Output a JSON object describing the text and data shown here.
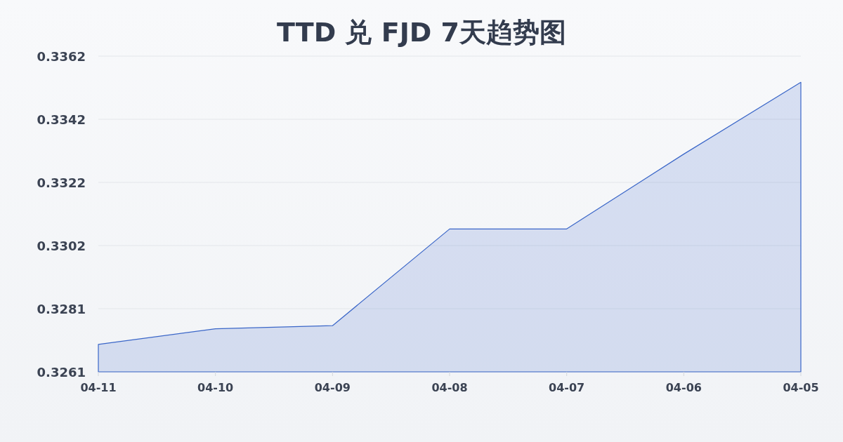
{
  "chart_data": {
    "type": "area",
    "title": "TTD 兑 FJD 7天趋势图",
    "categories": [
      "04-11",
      "04-10",
      "04-09",
      "04-08",
      "04-07",
      "04-06",
      "04-05"
    ],
    "series": [
      {
        "color": "#3a66c8",
        "values": [
          0.327,
          0.3275,
          0.3276,
          0.3307,
          0.3307,
          0.3331,
          0.3354
        ]
      }
    ],
    "ylim": [
      0.32612,
      0.33624
    ],
    "yticks": [
      {
        "value": 0.32612,
        "label": "0.3261"
      },
      {
        "value": 0.328144,
        "label": "0.3281"
      },
      {
        "value": 0.330168,
        "label": "0.3302"
      },
      {
        "value": 0.332192,
        "label": "0.3322"
      },
      {
        "value": 0.334216,
        "label": "0.3342"
      },
      {
        "value": 0.33624,
        "label": "0.3362"
      }
    ],
    "grid": "y"
  }
}
